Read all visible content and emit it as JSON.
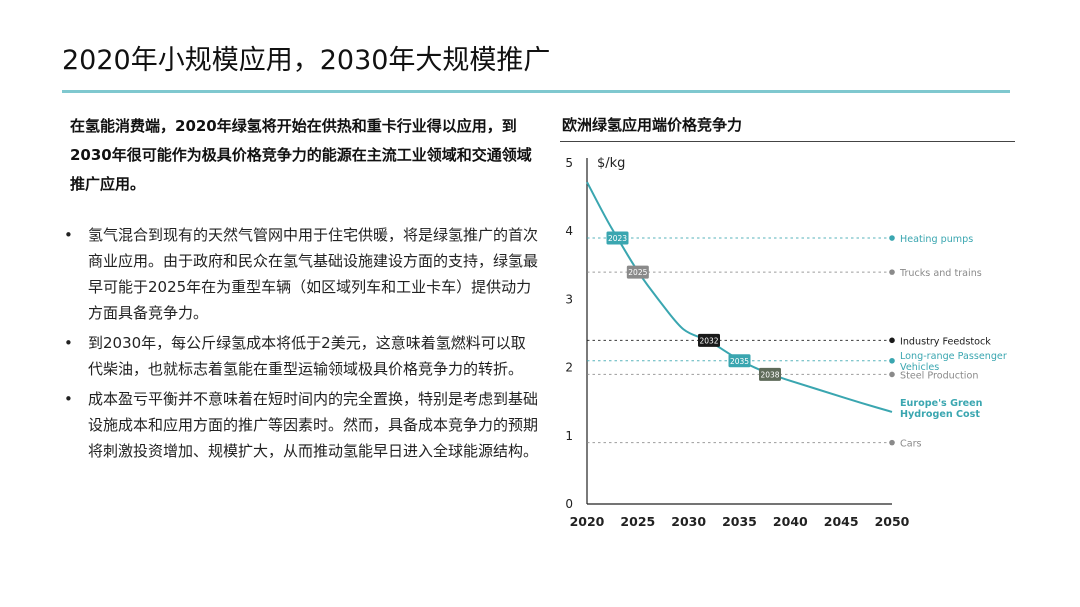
{
  "slide": {
    "title": "2020年小规模应用，2030年大规模推广",
    "lead": "在氢能消费端，2020年绿氢将开始在供热和重卡行业得以应用，到2030年很可能作为极具价格竞争力的能源在主流工业领域和交通领域推广应用。",
    "bullet_marker": "•",
    "bullets": [
      "氢气混合到现有的天然气管网中用于住宅供暖，将是绿氢推广的首次商业应用。由于政府和民众在氢气基础设施建设方面的支持，绿氢最早可能于2025年在为重型车辆（如区域列车和工业卡车）提供动力方面具备竞争力。",
      "到2030年，每公斤绿氢成本将低于2美元，这意味着氢燃料可以取代柴油，也就标志着氢能在重型运输领域极具价格竞争力的转折。",
      "成本盈亏平衡并不意味着在短时间内的完全置换，特别是考虑到基础设施成本和应用方面的推广等因素时。然而，具备成本竞争力的预期将刺激投资增加、规模扩大，从而推动氢能早日进入全球能源结构。"
    ]
  },
  "colors": {
    "teal": "#3aa6b0",
    "dark": "#1a1a1a",
    "grey": "#8a8a8a",
    "olive": "#5f6b5a",
    "accent_rule": "#7fc8cf"
  },
  "chart_data": {
    "type": "line",
    "title": "欧洲绿氢应用端价格竞争力",
    "ylabel": "$/kg",
    "xlabel": "",
    "xlim": [
      2020,
      2050
    ],
    "ylim": [
      0,
      5
    ],
    "x_ticks": [
      2020,
      2025,
      2030,
      2035,
      2040,
      2045,
      2050
    ],
    "y_ticks": [
      0,
      1,
      2,
      3,
      4,
      5
    ],
    "grid": false,
    "series": [
      {
        "name": "Europe's Green Hydrogen Cost",
        "x": [
          2020,
          2022,
          2023,
          2025,
          2027,
          2029,
          2030,
          2032,
          2035,
          2038,
          2041,
          2044,
          2047,
          2050
        ],
        "y": [
          4.72,
          4.15,
          3.9,
          3.4,
          3.0,
          2.62,
          2.5,
          2.4,
          2.1,
          1.9,
          1.76,
          1.62,
          1.48,
          1.35
        ]
      }
    ],
    "thresholds": [
      {
        "label": "Heating pumps",
        "y": 3.9,
        "style": "teal"
      },
      {
        "label": "Trucks and trains",
        "y": 3.4,
        "style": "grey"
      },
      {
        "label": "Industry Feedstock",
        "y": 2.4,
        "style": "dark"
      },
      {
        "label": "Long-range Passenger Vehicles",
        "y": 2.1,
        "style": "teal"
      },
      {
        "label": "Steel Production",
        "y": 1.9,
        "style": "grey"
      },
      {
        "label": "Cars",
        "y": 0.9,
        "style": "grey"
      }
    ],
    "year_markers": [
      {
        "label": "2023",
        "x": 2023,
        "y": 3.9,
        "style": "teal"
      },
      {
        "label": "2025",
        "x": 2025,
        "y": 3.4,
        "style": "grey"
      },
      {
        "label": "2032",
        "x": 2032,
        "y": 2.4,
        "style": "dark"
      },
      {
        "label": "2035",
        "x": 2035,
        "y": 2.1,
        "style": "teal"
      },
      {
        "label": "2038",
        "x": 2038,
        "y": 1.9,
        "style": "olive"
      }
    ],
    "series_label": "Europe's Green Hydrogen Cost"
  }
}
